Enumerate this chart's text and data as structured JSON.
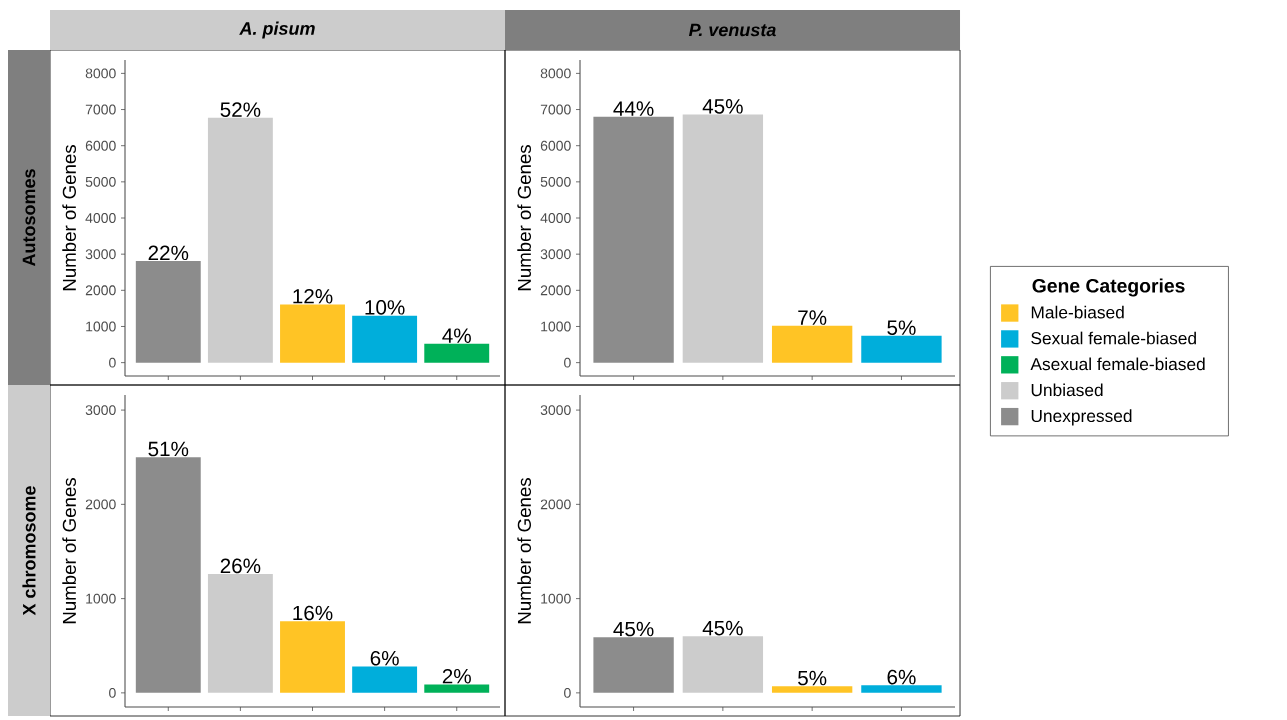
{
  "chart_data": [
    {
      "type": "bar",
      "title": "A. pisum",
      "ylabel": "Number of Genes",
      "categories": [
        null,
        null,
        null,
        null,
        null
      ],
      "ylim": [
        -370,
        8370
      ],
      "yticks": [
        0,
        1000,
        2000,
        3000,
        4000,
        5000,
        6000,
        7000,
        8000
      ],
      "legend": "right",
      "legend_title": "Gene Categories",
      "annotations": [
        "Autosomes",
        {
          "text": "22%",
          "y": 2810
        },
        {
          "text": "52%",
          "y": 6770
        },
        {
          "text": "12%",
          "y": 1610
        },
        {
          "text": "10%",
          "y": 1300
        },
        {
          "text": "4%",
          "y": 520
        }
      ],
      "series": [
        {
          "name": "Male-biased",
          "color": "#ffc425",
          "values": [
            null,
            null,
            1610,
            null,
            null
          ]
        },
        {
          "name": "Sexual female-biased",
          "color": "#00aedb",
          "values": [
            null,
            null,
            null,
            1300,
            null
          ]
        },
        {
          "name": "Asexual female-biased",
          "color": "#00b159",
          "values": [
            null,
            null,
            null,
            null,
            520
          ]
        },
        {
          "name": "Unbiased",
          "color": "#cccccc",
          "values": [
            null,
            6770,
            null,
            null,
            null
          ]
        },
        {
          "name": "Unexpressed",
          "color": "#8c8c8c",
          "values": [
            2810,
            null,
            null,
            null,
            null
          ]
        }
      ]
    },
    {
      "type": "bar",
      "title": "P. venusta",
      "ylabel": "Number of Genes",
      "categories": [
        null,
        null,
        null,
        null
      ],
      "ylim": [
        -370,
        8370
      ],
      "yticks": [
        0,
        1000,
        2000,
        3000,
        4000,
        5000,
        6000,
        7000,
        8000
      ],
      "annotations": [
        {
          "text": "44%",
          "y": 6800
        },
        {
          "text": "45%",
          "y": 6860
        },
        {
          "text": "7%",
          "y": 1020
        },
        {
          "text": "5%",
          "y": 740
        }
      ],
      "series": [
        {
          "color": "#ffc425",
          "values": [
            null,
            null,
            1020,
            null
          ]
        },
        {
          "color": "#00aedb",
          "values": [
            null,
            null,
            null,
            740
          ]
        },
        {
          "color": "#cccccc",
          "values": [
            null,
            6860,
            null,
            null
          ]
        },
        {
          "color": "#8c8c8c",
          "values": [
            6800,
            null,
            null,
            null
          ]
        }
      ]
    },
    {
      "type": "bar",
      "ylabel": "Number of Genes",
      "categories": [
        null,
        null,
        null,
        null,
        null
      ],
      "ylim": [
        -150,
        3160
      ],
      "yticks": [
        0,
        1000,
        2000,
        3000
      ],
      "annotations": [
        "X chromosome",
        {
          "text": "51%",
          "y": 2500
        },
        {
          "text": "26%",
          "y": 1260
        },
        {
          "text": "16%",
          "y": 760
        },
        {
          "text": "6%",
          "y": 280
        },
        {
          "text": "2%",
          "y": 90
        }
      ],
      "series": [
        {
          "color": "#ffc425",
          "values": [
            null,
            null,
            760,
            null,
            null
          ]
        },
        {
          "color": "#00aedb",
          "values": [
            null,
            null,
            null,
            280,
            null
          ]
        },
        {
          "color": "#00b159",
          "values": [
            null,
            null,
            null,
            null,
            90
          ]
        },
        {
          "color": "#cccccc",
          "values": [
            null,
            1260,
            null,
            null,
            null
          ]
        },
        {
          "color": "#8c8c8c",
          "values": [
            2500,
            null,
            null,
            null,
            null
          ]
        }
      ]
    },
    {
      "type": "bar",
      "ylabel": "Number of Genes",
      "categories": [
        null,
        null,
        null,
        null
      ],
      "ylim": [
        -150,
        3160
      ],
      "yticks": [
        0,
        1000,
        2000,
        3000
      ],
      "annotations": [
        {
          "text": "45%",
          "y": 590
        },
        {
          "text": "45%",
          "y": 600
        },
        {
          "text": "5%",
          "y": 70
        },
        {
          "text": "6%",
          "y": 80
        }
      ],
      "series": [
        {
          "color": "#ffc425",
          "values": [
            null,
            null,
            70,
            null
          ]
        },
        {
          "color": "#00aedb",
          "values": [
            null,
            null,
            null,
            80
          ]
        },
        {
          "color": "#cccccc",
          "values": [
            null,
            600,
            null,
            null
          ]
        },
        {
          "color": "#8c8c8c",
          "values": [
            590,
            null,
            null,
            null
          ]
        }
      ]
    }
  ]
}
